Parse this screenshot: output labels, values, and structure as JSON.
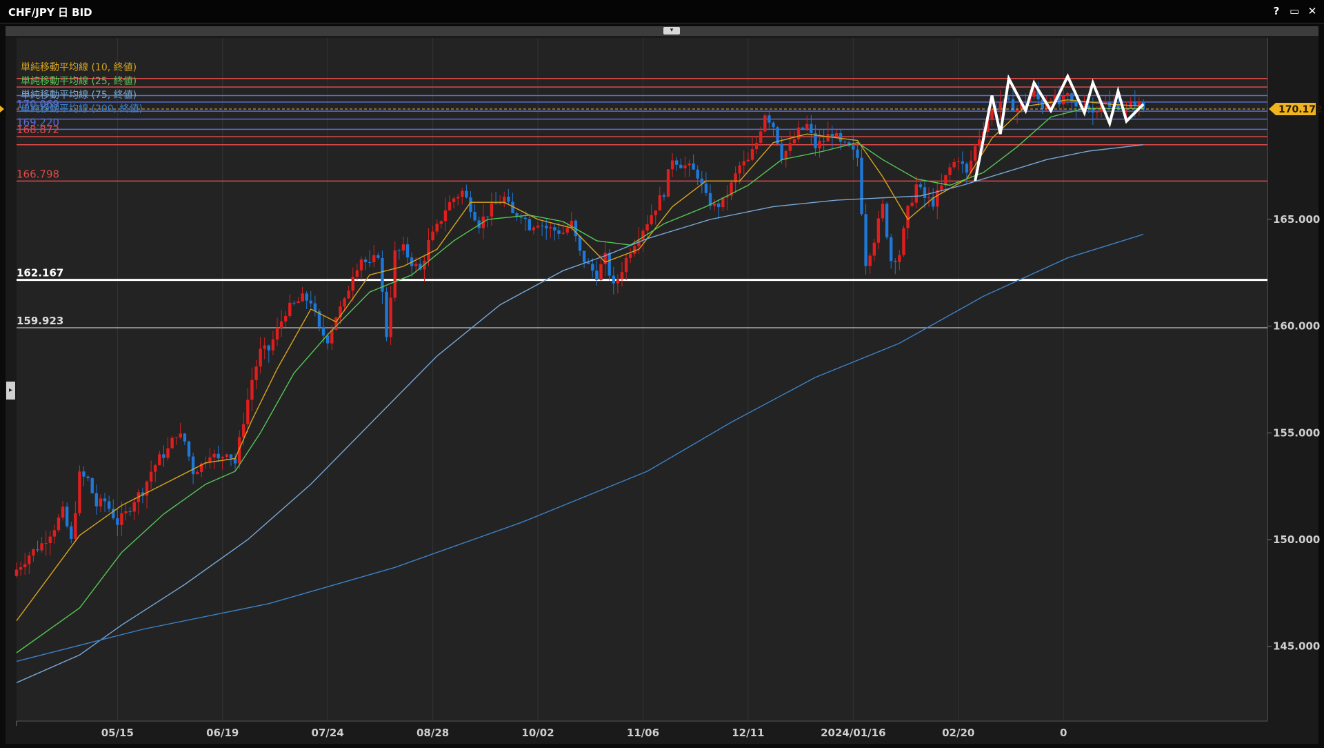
{
  "window": {
    "title": "CHF/JPY 日 BID",
    "help_label": "?",
    "maximize_label": "▭",
    "close_label": "✕",
    "collapse_label": "▾",
    "side_handle_label": "▸"
  },
  "colors": {
    "background": "#232323",
    "up_candle": "#e01e1e",
    "down_candle": "#1e78d7",
    "ma10": "#d7a51e",
    "ma25": "#55c855",
    "ma75": "#78a8d8",
    "ma200": "#3c82c8",
    "support_white": "#ffffff",
    "support_grey": "#aaaaaa",
    "resistance_red": "#e04a4a",
    "blue_line": "#5a6ed6",
    "current_price": "#f0b41e",
    "pattern": "#ffffff"
  },
  "legend": [
    {
      "label": "単純移動平均線 (10, 終値)",
      "color": "#d7a51e"
    },
    {
      "label": "単純移動平均線 (25, 終値)",
      "color": "#55c855"
    },
    {
      "label": "単純移動平均線 (75, 終値)",
      "color": "#78a8d8"
    },
    {
      "label": "単純移動平均線 (200, 終値)",
      "color": "#3c82c8"
    }
  ],
  "chart_data": {
    "type": "candlestick",
    "title": "CHF/JPY 日 BID",
    "ylim": [
      141.5,
      173.5
    ],
    "y_ticks": [
      "145.000",
      "150.000",
      "155.000",
      "160.000",
      "165.000"
    ],
    "x_tick_labels": [
      "05/15",
      "06/19",
      "07/24",
      "08/28",
      "10/02",
      "11/06",
      "12/11",
      "2024/01/16",
      "02/20",
      "0"
    ],
    "current_price": 170.172,
    "current_price_label": "170.172",
    "horizontal_lines": [
      {
        "value": 171.6,
        "label": "",
        "color": "#e04a4a"
      },
      {
        "value": 171.2,
        "label": "",
        "color": "#e04a4a"
      },
      {
        "value": 170.8,
        "label": "",
        "color": "#5a6ed6"
      },
      {
        "value": 170.5,
        "label": "",
        "color": "#5a6ed6"
      },
      {
        "value": 170.069,
        "label": "170.069",
        "color": "#5a6ed6"
      },
      {
        "value": 169.7,
        "label": "",
        "color": "#5a6ed6"
      },
      {
        "value": 169.22,
        "label": "169.220",
        "color": "#5a6ed6"
      },
      {
        "value": 168.872,
        "label": "168.872",
        "color": "#e04a4a"
      },
      {
        "value": 168.5,
        "label": "",
        "color": "#e04a4a"
      },
      {
        "value": 166.798,
        "label": "166.798",
        "color": "#e04a4a"
      },
      {
        "value": 162.167,
        "label": "162.167",
        "color": "#ffffff"
      },
      {
        "value": 159.923,
        "label": "159.923",
        "color": "#aaaaaa"
      }
    ],
    "close_path": [
      [
        0,
        148.6
      ],
      [
        3,
        149.3
      ],
      [
        6,
        149.8
      ],
      [
        9,
        150.6
      ],
      [
        11,
        151.3
      ],
      [
        13,
        149.9
      ],
      [
        15,
        153.0
      ],
      [
        17,
        152.8
      ],
      [
        19,
        151.6
      ],
      [
        21,
        151.8
      ],
      [
        24,
        150.8
      ],
      [
        26,
        151.2
      ],
      [
        28,
        151.9
      ],
      [
        30,
        152.3
      ],
      [
        32,
        153.2
      ],
      [
        34,
        153.8
      ],
      [
        36,
        154.2
      ],
      [
        38,
        155.0
      ],
      [
        40,
        154.6
      ],
      [
        42,
        153.2
      ],
      [
        44,
        153.5
      ],
      [
        46,
        154.1
      ],
      [
        48,
        153.7
      ],
      [
        50,
        154.2
      ],
      [
        52,
        153.6
      ],
      [
        54,
        155.6
      ],
      [
        56,
        157.5
      ],
      [
        58,
        158.8
      ],
      [
        60,
        158.9
      ],
      [
        62,
        159.8
      ],
      [
        64,
        160.7
      ],
      [
        66,
        161.0
      ],
      [
        68,
        161.3
      ],
      [
        70,
        161.2
      ],
      [
        72,
        159.8
      ],
      [
        74,
        159.4
      ],
      [
        76,
        160.5
      ],
      [
        78,
        161.1
      ],
      [
        80,
        162.5
      ],
      [
        82,
        163.2
      ],
      [
        84,
        162.8
      ],
      [
        86,
        163.4
      ],
      [
        88,
        159.6
      ],
      [
        90,
        163.4
      ],
      [
        92,
        163.6
      ],
      [
        94,
        163.0
      ],
      [
        96,
        162.6
      ],
      [
        98,
        163.9
      ],
      [
        100,
        164.6
      ],
      [
        102,
        165.5
      ],
      [
        104,
        166.0
      ],
      [
        106,
        166.3
      ],
      [
        108,
        165.6
      ],
      [
        110,
        164.8
      ],
      [
        112,
        165.3
      ],
      [
        114,
        165.7
      ],
      [
        116,
        166.0
      ],
      [
        118,
        165.2
      ],
      [
        120,
        165.3
      ],
      [
        122,
        164.7
      ],
      [
        124,
        164.9
      ],
      [
        126,
        164.6
      ],
      [
        128,
        164.5
      ],
      [
        130,
        164.4
      ],
      [
        132,
        164.8
      ],
      [
        134,
        163.4
      ],
      [
        136,
        162.8
      ],
      [
        138,
        162.4
      ],
      [
        140,
        163.2
      ],
      [
        142,
        161.8
      ],
      [
        144,
        162.7
      ],
      [
        146,
        163.6
      ],
      [
        148,
        164.3
      ],
      [
        150,
        164.9
      ],
      [
        152,
        165.6
      ],
      [
        154,
        166.3
      ],
      [
        156,
        167.9
      ],
      [
        158,
        167.6
      ],
      [
        160,
        167.4
      ],
      [
        162,
        167.1
      ],
      [
        164,
        166.0
      ],
      [
        166,
        165.6
      ],
      [
        168,
        165.8
      ],
      [
        170,
        166.6
      ],
      [
        172,
        167.5
      ],
      [
        174,
        167.7
      ],
      [
        176,
        168.6
      ],
      [
        178,
        170.0
      ],
      [
        180,
        169.4
      ],
      [
        182,
        168.0
      ],
      [
        184,
        168.4
      ],
      [
        186,
        169.1
      ],
      [
        188,
        169.4
      ],
      [
        190,
        168.4
      ],
      [
        192,
        168.7
      ],
      [
        194,
        169.1
      ],
      [
        196,
        168.5
      ],
      [
        198,
        168.3
      ],
      [
        200,
        167.9
      ],
      [
        202,
        163.0
      ],
      [
        204,
        164.1
      ],
      [
        206,
        165.6
      ],
      [
        208,
        163.1
      ],
      [
        210,
        163.4
      ],
      [
        212,
        165.4
      ],
      [
        214,
        166.6
      ],
      [
        216,
        166.0
      ],
      [
        218,
        165.8
      ],
      [
        220,
        166.5
      ],
      [
        222,
        167.4
      ],
      [
        224,
        167.9
      ],
      [
        226,
        167.1
      ],
      [
        228,
        168.4
      ],
      [
        230,
        169.3
      ],
      [
        232,
        170.1
      ],
      [
        234,
        170.5
      ],
      [
        236,
        170.4
      ],
      [
        238,
        170.2
      ],
      [
        240,
        170.6
      ],
      [
        242,
        170.9
      ],
      [
        244,
        170.3
      ],
      [
        246,
        170.8
      ],
      [
        248,
        170.4
      ],
      [
        250,
        170.7
      ],
      [
        252,
        170.2
      ],
      [
        254,
        170.5
      ],
      [
        256,
        170.0
      ],
      [
        258,
        170.6
      ],
      [
        260,
        170.2
      ],
      [
        262,
        170.4
      ],
      [
        264,
        170.1
      ],
      [
        266,
        170.5
      ],
      [
        268,
        170.17
      ]
    ],
    "ma_series": [
      {
        "name": "単純移動平均線 (10, 終値)",
        "color": "#d7a51e",
        "points": [
          [
            0,
            146.2
          ],
          [
            15,
            150.2
          ],
          [
            25,
            151.6
          ],
          [
            35,
            152.6
          ],
          [
            45,
            153.6
          ],
          [
            52,
            153.8
          ],
          [
            56,
            155.6
          ],
          [
            62,
            158.0
          ],
          [
            70,
            160.8
          ],
          [
            76,
            160.2
          ],
          [
            84,
            162.4
          ],
          [
            92,
            162.8
          ],
          [
            100,
            163.6
          ],
          [
            108,
            165.8
          ],
          [
            116,
            165.8
          ],
          [
            124,
            165.0
          ],
          [
            132,
            164.6
          ],
          [
            140,
            163.0
          ],
          [
            148,
            163.6
          ],
          [
            156,
            165.6
          ],
          [
            164,
            166.8
          ],
          [
            172,
            166.8
          ],
          [
            180,
            168.6
          ],
          [
            188,
            169.0
          ],
          [
            196,
            168.8
          ],
          [
            200,
            168.7
          ],
          [
            206,
            167.0
          ],
          [
            212,
            165.0
          ],
          [
            218,
            166.0
          ],
          [
            226,
            166.9
          ],
          [
            232,
            168.8
          ],
          [
            240,
            170.3
          ],
          [
            250,
            170.6
          ],
          [
            260,
            170.4
          ],
          [
            268,
            170.3
          ]
        ]
      },
      {
        "name": "単純移動平均線 (25, 終値)",
        "color": "#55c855",
        "points": [
          [
            0,
            144.7
          ],
          [
            15,
            146.8
          ],
          [
            25,
            149.4
          ],
          [
            35,
            151.2
          ],
          [
            45,
            152.6
          ],
          [
            52,
            153.2
          ],
          [
            58,
            155.0
          ],
          [
            66,
            157.8
          ],
          [
            74,
            159.6
          ],
          [
            84,
            161.6
          ],
          [
            94,
            162.4
          ],
          [
            104,
            164.0
          ],
          [
            112,
            165.0
          ],
          [
            122,
            165.2
          ],
          [
            130,
            164.9
          ],
          [
            138,
            164.0
          ],
          [
            146,
            163.8
          ],
          [
            154,
            164.8
          ],
          [
            164,
            165.6
          ],
          [
            174,
            166.6
          ],
          [
            182,
            167.8
          ],
          [
            192,
            168.2
          ],
          [
            200,
            168.6
          ],
          [
            206,
            167.8
          ],
          [
            214,
            166.9
          ],
          [
            222,
            166.6
          ],
          [
            230,
            167.2
          ],
          [
            238,
            168.4
          ],
          [
            246,
            169.8
          ],
          [
            254,
            170.2
          ],
          [
            262,
            170.2
          ],
          [
            268,
            170.2
          ]
        ]
      },
      {
        "name": "単純移動平均線 (75, 終値)",
        "color": "#78a8d8",
        "points": [
          [
            0,
            143.3
          ],
          [
            15,
            144.6
          ],
          [
            25,
            146.0
          ],
          [
            40,
            147.9
          ],
          [
            55,
            150.0
          ],
          [
            70,
            152.6
          ],
          [
            85,
            155.6
          ],
          [
            100,
            158.6
          ],
          [
            115,
            161.0
          ],
          [
            130,
            162.6
          ],
          [
            140,
            163.3
          ],
          [
            150,
            164.1
          ],
          [
            165,
            165.0
          ],
          [
            180,
            165.6
          ],
          [
            195,
            165.9
          ],
          [
            205,
            166.0
          ],
          [
            215,
            166.1
          ],
          [
            225,
            166.6
          ],
          [
            235,
            167.2
          ],
          [
            245,
            167.8
          ],
          [
            255,
            168.2
          ],
          [
            268,
            168.5
          ]
        ]
      },
      {
        "name": "単純移動平均線 (200, 終値)",
        "color": "#3c82c8",
        "points": [
          [
            0,
            144.3
          ],
          [
            30,
            145.8
          ],
          [
            60,
            147.0
          ],
          [
            90,
            148.7
          ],
          [
            120,
            150.8
          ],
          [
            150,
            153.2
          ],
          [
            170,
            155.5
          ],
          [
            190,
            157.6
          ],
          [
            210,
            159.2
          ],
          [
            230,
            161.4
          ],
          [
            250,
            163.2
          ],
          [
            268,
            164.3
          ]
        ]
      }
    ],
    "pattern_path": [
      [
        228,
        166.8
      ],
      [
        232,
        170.8
      ],
      [
        234,
        169.0
      ],
      [
        236,
        171.6
      ],
      [
        240,
        170.1
      ],
      [
        242,
        171.4
      ],
      [
        246,
        170.1
      ],
      [
        250,
        171.7
      ],
      [
        254,
        170.0
      ],
      [
        256,
        171.4
      ],
      [
        260,
        169.5
      ],
      [
        262,
        171.0
      ],
      [
        264,
        169.6
      ],
      [
        268,
        170.4
      ]
    ],
    "x_tick_positions": [
      24,
      49,
      74,
      99,
      124,
      149,
      174,
      199,
      224,
      249
    ]
  }
}
